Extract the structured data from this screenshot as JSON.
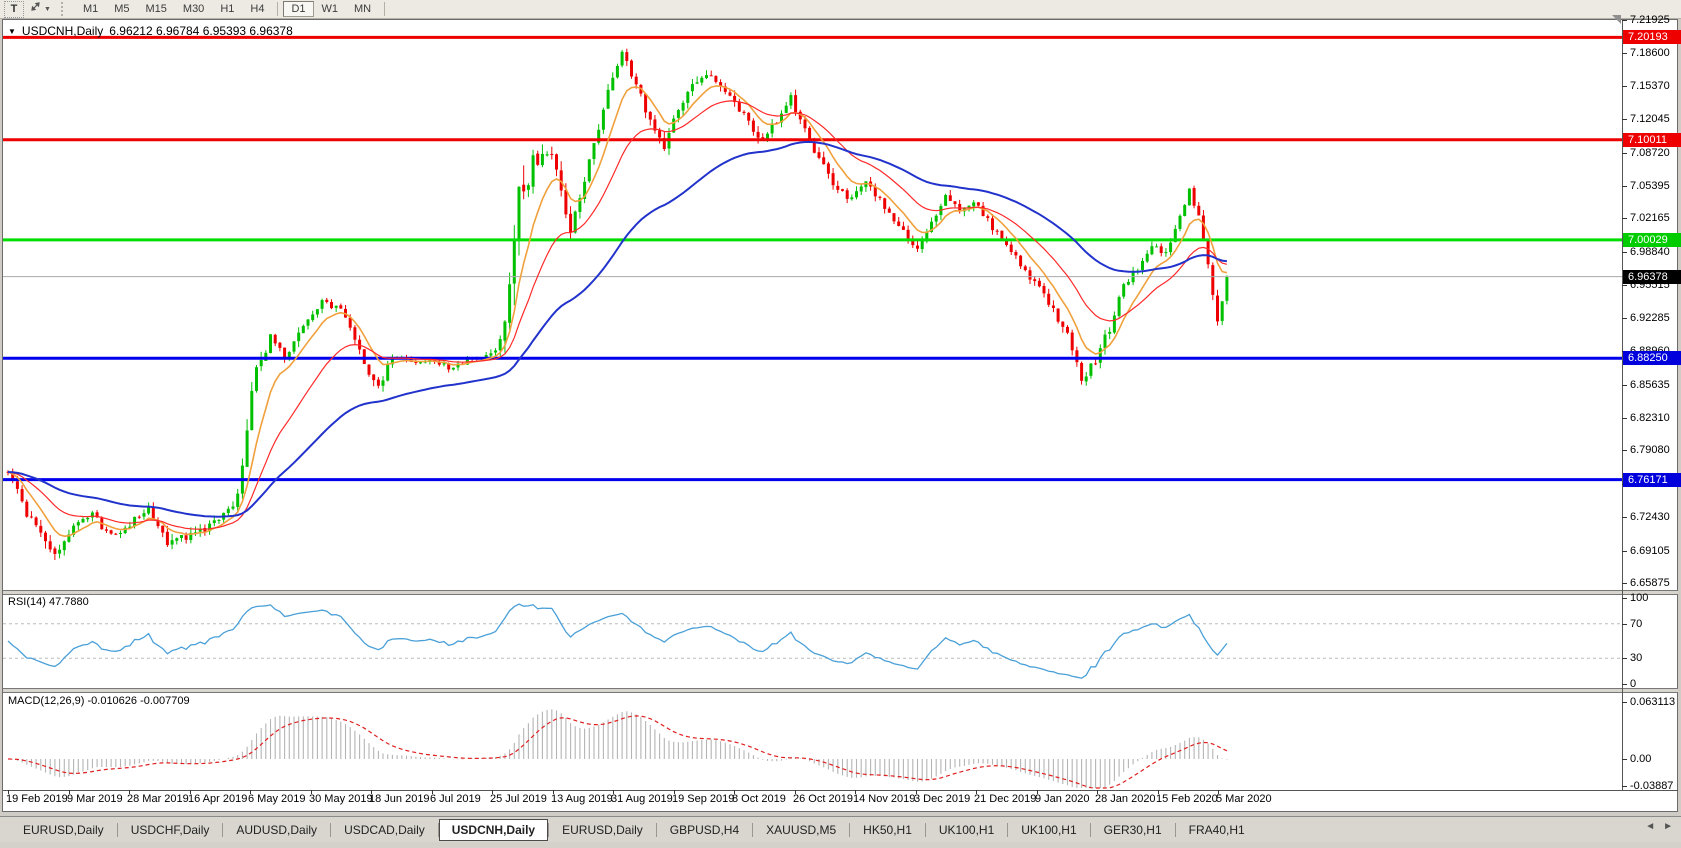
{
  "colors": {
    "up": "#00c000",
    "down": "#ee0000",
    "ma_fast": "#f0a03c",
    "ma_mid": "#ff2a2a",
    "ma_slow": "#2233cc",
    "rsi_line": "#4aa0d8",
    "rsi_level": "#bbbbbb",
    "macd_hist": "#b4b4b4",
    "macd_signal": "#e02020",
    "current_price_line": "#aaaaaa"
  },
  "toolbar": {
    "text_tool": "T",
    "cursor_dropdown_glyph": "▼",
    "timeframes": [
      {
        "label": "M1",
        "active": false
      },
      {
        "label": "M5",
        "active": false
      },
      {
        "label": "M15",
        "active": false
      },
      {
        "label": "M30",
        "active": false
      },
      {
        "label": "H1",
        "active": false
      },
      {
        "label": "H4",
        "active": false
      },
      {
        "label": "D1",
        "active": true
      },
      {
        "label": "W1",
        "active": false
      },
      {
        "label": "MN",
        "active": false
      }
    ]
  },
  "chart": {
    "collapse_glyph": "▼",
    "symbol": "USDCNH,Daily",
    "ohlc": "6.96212 6.96784 6.95393 6.96378"
  },
  "price_axis": {
    "ticks": [
      "7.21925",
      "7.18600",
      "7.15370",
      "7.12045",
      "7.08720",
      "7.05395",
      "7.02165",
      "6.98840",
      "6.95515",
      "6.92285",
      "6.88960",
      "6.85635",
      "6.82310",
      "6.79080",
      "6.75755",
      "6.72430",
      "6.69105",
      "6.65875"
    ]
  },
  "price_tags": [
    {
      "label": "7.20193",
      "price": 7.20193,
      "color": "#ee0000",
      "name": "resistance-upper-tag"
    },
    {
      "label": "7.10011",
      "price": 7.10011,
      "color": "#ee0000",
      "name": "resistance-lower-tag"
    },
    {
      "label": "7.00029",
      "price": 7.00029,
      "color": "#00cc00",
      "name": "pivot-green-tag"
    },
    {
      "label": "6.96378",
      "price": 6.96378,
      "color": "#000000",
      "name": "current-price-tag"
    },
    {
      "label": "6.88250",
      "price": 6.8825,
      "color": "#0000dd",
      "name": "support-upper-tag"
    },
    {
      "label": "6.76171",
      "price": 6.76171,
      "color": "#0000dd",
      "name": "support-lower-tag"
    }
  ],
  "rsi": {
    "name": "RSI(14)",
    "value": "47.7880",
    "axis_labels": [
      "100",
      "70",
      "30",
      "0"
    ],
    "level_lines": [
      70,
      30
    ],
    "range": [
      0,
      100
    ]
  },
  "macd": {
    "name": "MACD(12,26,9)",
    "values": "-0.010626 -0.007709",
    "axis_top": "0.063113",
    "axis_zero": "0.00",
    "axis_bottom": "-0.03887"
  },
  "time_axis": {
    "labels": [
      "19 Feb 2019",
      "9 Mar 2019",
      "28 Mar 2019",
      "16 Apr 2019",
      "6 May 2019",
      "30 May 2019",
      "18 Jun 2019",
      "6 Jul 2019",
      "25 Jul 2019",
      "13 Aug 2019",
      "31 Aug 2019",
      "19 Sep 2019",
      "8 Oct 2019",
      "26 Oct 2019",
      "14 Nov 2019",
      "3 Dec 2019",
      "21 Dec 2019",
      "9 Jan 2020",
      "28 Jan 2020",
      "15 Feb 2020",
      "5 Mar 2020"
    ]
  },
  "tabs": {
    "items": [
      "EURUSD,Daily",
      "USDCHF,Daily",
      "AUDUSD,Daily",
      "USDCAD,Daily",
      "USDCNH,Daily",
      "EURUSD,Daily",
      "GBPUSD,H4",
      "XAUUSD,M5",
      "HK50,H1",
      "UK100,H1",
      "UK100,H1",
      "GER30,H1",
      "FRA40,H1"
    ],
    "active_index": 4,
    "nav_left": "◄",
    "nav_right": "►"
  },
  "chart_data": {
    "type": "candlestick",
    "symbol": "USDCNH",
    "timeframe": "Daily",
    "open": 6.96212,
    "high": 6.96784,
    "low": 6.95393,
    "close": 6.96378,
    "y_range": [
      6.65875,
      7.21925
    ],
    "n_candles": 261,
    "x_labels": [
      "19 Feb 2019",
      "9 Mar 2019",
      "28 Mar 2019",
      "16 Apr 2019",
      "6 May 2019",
      "30 May 2019",
      "18 Jun 2019",
      "6 Jul 2019",
      "25 Jul 2019",
      "13 Aug 2019",
      "31 Aug 2019",
      "19 Sep 2019",
      "8 Oct 2019",
      "26 Oct 2019",
      "14 Nov 2019",
      "3 Dec 2019",
      "21 Dec 2019",
      "9 Jan 2020",
      "28 Jan 2020",
      "15 Feb 2020",
      "5 Mar 2020"
    ],
    "close_anchors": [
      [
        0,
        6.772
      ],
      [
        4,
        6.728
      ],
      [
        8,
        6.7
      ],
      [
        11,
        6.688
      ],
      [
        14,
        6.714
      ],
      [
        18,
        6.726
      ],
      [
        22,
        6.705
      ],
      [
        26,
        6.718
      ],
      [
        30,
        6.733
      ],
      [
        34,
        6.698
      ],
      [
        38,
        6.704
      ],
      [
        42,
        6.713
      ],
      [
        46,
        6.727
      ],
      [
        49,
        6.744
      ],
      [
        51,
        6.81
      ],
      [
        53,
        6.876
      ],
      [
        56,
        6.902
      ],
      [
        59,
        6.886
      ],
      [
        63,
        6.911
      ],
      [
        67,
        6.938
      ],
      [
        71,
        6.929
      ],
      [
        74,
        6.904
      ],
      [
        77,
        6.869
      ],
      [
        79,
        6.853
      ],
      [
        82,
        6.885
      ],
      [
        86,
        6.878
      ],
      [
        90,
        6.882
      ],
      [
        94,
        6.873
      ],
      [
        98,
        6.88
      ],
      [
        102,
        6.884
      ],
      [
        105,
        6.897
      ],
      [
        107,
        6.958
      ],
      [
        109,
        7.046
      ],
      [
        112,
        7.076
      ],
      [
        115,
        7.091
      ],
      [
        118,
        7.052
      ],
      [
        120,
        7.008
      ],
      [
        123,
        7.063
      ],
      [
        126,
        7.113
      ],
      [
        129,
        7.166
      ],
      [
        131,
        7.186
      ],
      [
        134,
        7.156
      ],
      [
        137,
        7.119
      ],
      [
        140,
        7.093
      ],
      [
        143,
        7.129
      ],
      [
        146,
        7.153
      ],
      [
        149,
        7.164
      ],
      [
        153,
        7.149
      ],
      [
        157,
        7.123
      ],
      [
        161,
        7.099
      ],
      [
        164,
        7.119
      ],
      [
        167,
        7.141
      ],
      [
        171,
        7.099
      ],
      [
        175,
        7.063
      ],
      [
        179,
        7.041
      ],
      [
        183,
        7.059
      ],
      [
        187,
        7.033
      ],
      [
        191,
        7.009
      ],
      [
        194,
        6.991
      ],
      [
        197,
        7.019
      ],
      [
        200,
        7.043
      ],
      [
        203,
        7.031
      ],
      [
        206,
        7.037
      ],
      [
        210,
        7.013
      ],
      [
        214,
        6.989
      ],
      [
        218,
        6.963
      ],
      [
        222,
        6.939
      ],
      [
        226,
        6.906
      ],
      [
        229,
        6.863
      ],
      [
        232,
        6.879
      ],
      [
        235,
        6.913
      ],
      [
        238,
        6.953
      ],
      [
        241,
        6.973
      ],
      [
        244,
        6.993
      ],
      [
        247,
        6.989
      ],
      [
        250,
        7.023
      ],
      [
        252,
        7.049
      ],
      [
        254,
        7.021
      ],
      [
        256,
        6.976
      ],
      [
        258,
        6.92
      ],
      [
        259,
        6.941
      ],
      [
        260,
        6.96378
      ]
    ],
    "volatility_anchors": [
      [
        0,
        0.01
      ],
      [
        8,
        0.013
      ],
      [
        14,
        0.008
      ],
      [
        30,
        0.008
      ],
      [
        34,
        0.011
      ],
      [
        48,
        0.009
      ],
      [
        51,
        0.02
      ],
      [
        53,
        0.018
      ],
      [
        58,
        0.011
      ],
      [
        66,
        0.009
      ],
      [
        74,
        0.009
      ],
      [
        79,
        0.011
      ],
      [
        84,
        0.007
      ],
      [
        102,
        0.005
      ],
      [
        105,
        0.014
      ],
      [
        108,
        0.038
      ],
      [
        111,
        0.03
      ],
      [
        116,
        0.018
      ],
      [
        120,
        0.014
      ],
      [
        126,
        0.014
      ],
      [
        131,
        0.011
      ],
      [
        140,
        0.011
      ],
      [
        150,
        0.01
      ],
      [
        170,
        0.01
      ],
      [
        190,
        0.008
      ],
      [
        206,
        0.009
      ],
      [
        214,
        0.007
      ],
      [
        226,
        0.01
      ],
      [
        230,
        0.011
      ],
      [
        238,
        0.011
      ],
      [
        246,
        0.008
      ],
      [
        252,
        0.009
      ],
      [
        256,
        0.012
      ],
      [
        260,
        0.009
      ]
    ],
    "hlines": [
      {
        "price": 7.20193,
        "color": "#ee0000",
        "width": 3
      },
      {
        "price": 7.10011,
        "color": "#ee0000",
        "width": 3
      },
      {
        "price": 7.00029,
        "color": "#00dd00",
        "width": 3
      },
      {
        "price": 6.96378,
        "color": "#aaaaaa",
        "width": 1
      },
      {
        "price": 6.8825,
        "color": "#0000ee",
        "width": 3
      },
      {
        "price": 6.76171,
        "color": "#0000ee",
        "width": 3
      }
    ],
    "moving_averages": [
      {
        "period": 8,
        "color": "#f0a03c",
        "width": 1.6
      },
      {
        "period": 21,
        "color": "#ff2a2a",
        "width": 1.2
      },
      {
        "period": 55,
        "color": "#2233cc",
        "width": 2
      }
    ],
    "rsi_period": 14,
    "rsi_last": 47.788,
    "macd_params": [
      12,
      26,
      9
    ],
    "macd_last": -0.010626,
    "macd_signal_last": -0.007709,
    "macd_axis": {
      "top": 0.063113,
      "zero": 0.0,
      "bottom": -0.03887
    }
  }
}
